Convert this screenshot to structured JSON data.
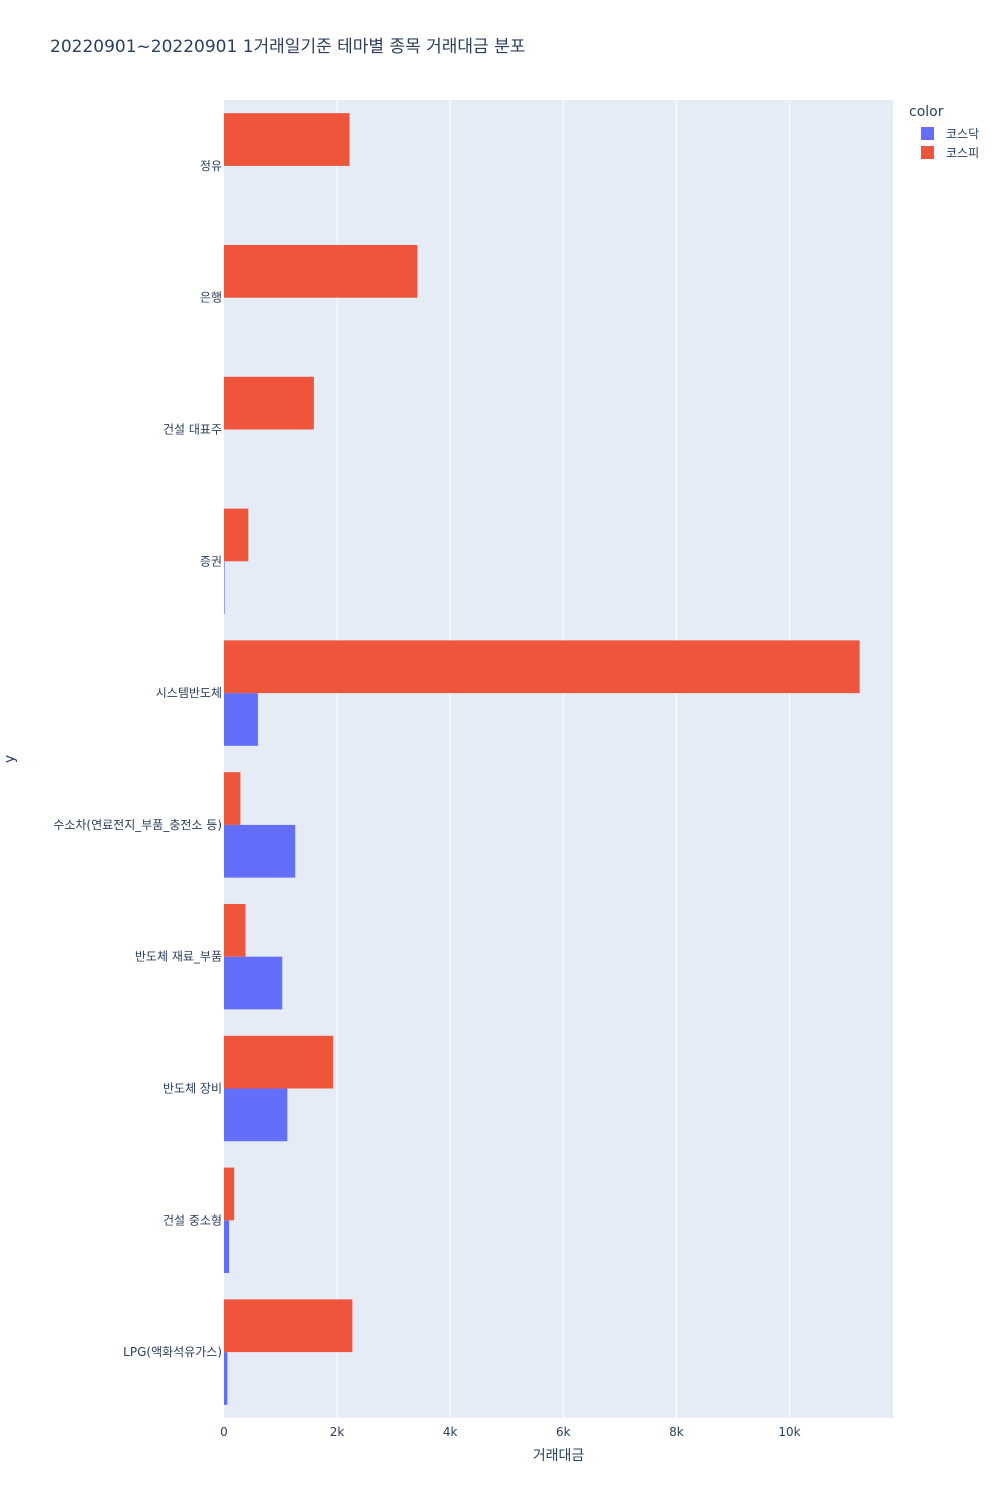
{
  "chart_data": {
    "type": "bar",
    "orientation": "horizontal",
    "title": "20220901~20220901 1거래일기준 테마별 종목 거래대금 분포",
    "xlabel": "거래대금",
    "ylabel": "y",
    "xlim": [
      0,
      11830
    ],
    "x_ticks": [
      0,
      2000,
      4000,
      6000,
      8000,
      10000
    ],
    "x_tick_labels": [
      "0",
      "2k",
      "4k",
      "6k",
      "8k",
      "10k"
    ],
    "grid": true,
    "legend_title": "color",
    "legend_position": "top-right",
    "categories": [
      "정유",
      "은행",
      "건설 대표주",
      "증권",
      "시스템반도체",
      "수소차(연료전지_부품_충전소 등)",
      "반도체 재료_부품",
      "반도체 장비",
      "건설 중소형",
      "LPG(액화석유가스)"
    ],
    "series": [
      {
        "name": "코스닥",
        "color": "#636efa",
        "values": [
          0,
          0,
          0,
          10,
          600,
          1260,
          1030,
          1120,
          90,
          60
        ]
      },
      {
        "name": "코스피",
        "color": "#ef553b",
        "values": [
          2220,
          3420,
          1590,
          430,
          11240,
          290,
          380,
          1930,
          180,
          2270
        ]
      }
    ]
  }
}
